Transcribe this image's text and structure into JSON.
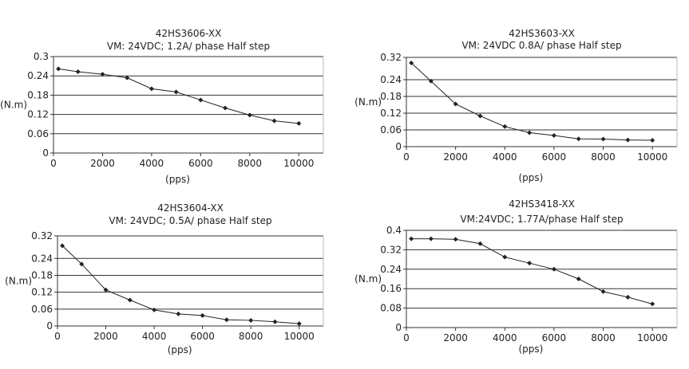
{
  "chart_data": [
    {
      "type": "line",
      "title": "42HS3606-XX",
      "subtitle": "VM: 24VDC;  1.2A/ phase Half step",
      "xlabel": "(pps)",
      "ylabel": "(N.m)",
      "xlim": [
        0,
        11000
      ],
      "ylim": [
        0,
        0.3
      ],
      "x_ticks": [
        "0",
        "2000",
        "4000",
        "6000",
        "8000",
        "10000"
      ],
      "y_ticks": [
        "0",
        "0.06",
        "0.12",
        "0.18",
        "0.24",
        "0.3"
      ],
      "grid": "horizontal",
      "series": [
        {
          "x": [
            200,
            1000,
            2000,
            3000,
            4000,
            5000,
            6000,
            7000,
            8000,
            9000,
            10000
          ],
          "values": [
            0.262,
            0.253,
            0.245,
            0.234,
            0.2,
            0.19,
            0.165,
            0.14,
            0.118,
            0.1,
            0.092
          ],
          "color": "#222222"
        }
      ]
    },
    {
      "type": "line",
      "title": "42HS3603-XX",
      "subtitle": "VM: 24VDC  0.8A/ phase Half step",
      "xlabel": "(pps)",
      "ylabel": "(N.m)",
      "xlim": [
        0,
        11000
      ],
      "ylim": [
        0,
        0.32
      ],
      "x_ticks": [
        "0",
        "2000",
        "4000",
        "6000",
        "8000",
        "10000"
      ],
      "y_ticks": [
        "0",
        "0.06",
        "0.12",
        "0.18",
        "0.24",
        "0.32"
      ],
      "grid": "horizontal",
      "series": [
        {
          "x": [
            200,
            1000,
            2000,
            3000,
            4000,
            5000,
            6000,
            7000,
            8000,
            9000,
            10000
          ],
          "values": [
            0.3,
            0.235,
            0.153,
            0.11,
            0.072,
            0.05,
            0.04,
            0.028,
            0.027,
            0.024,
            0.023
          ],
          "color": "#222222"
        }
      ]
    },
    {
      "type": "line",
      "title": "42HS3604-XX",
      "subtitle": "VM: 24VDC; 0.5A/ phase Half step",
      "xlabel": "(pps)",
      "ylabel": "(N.m)",
      "xlim": [
        0,
        11000
      ],
      "ylim": [
        0,
        0.32
      ],
      "x_ticks": [
        "0",
        "2000",
        "4000",
        "6000",
        "8000",
        "10000"
      ],
      "y_ticks": [
        "0",
        "0.06",
        "0.12",
        "0.18",
        "0.24",
        "0.32"
      ],
      "grid": "horizontal",
      "series": [
        {
          "x": [
            200,
            1000,
            2000,
            3000,
            4000,
            5000,
            6000,
            7000,
            8000,
            9000,
            10000
          ],
          "values": [
            0.285,
            0.22,
            0.128,
            0.092,
            0.057,
            0.043,
            0.037,
            0.022,
            0.02,
            0.015,
            0.008
          ],
          "color": "#222222"
        }
      ]
    },
    {
      "type": "line",
      "title": "42HS3418-XX",
      "subtitle": "VM:24VDC; 1.77A/phase  Half step",
      "xlabel": "(pps)",
      "ylabel": "(N.m)",
      "xlim": [
        0,
        11000
      ],
      "ylim": [
        0,
        0.4
      ],
      "x_ticks": [
        "0",
        "2000",
        "4000",
        "6000",
        "8000",
        "10000"
      ],
      "y_ticks": [
        "0",
        "0.08",
        "0.16",
        "0.24",
        "0.32",
        "0.4"
      ],
      "grid": "horizontal",
      "series": [
        {
          "x": [
            200,
            1000,
            2000,
            3000,
            4000,
            5000,
            6000,
            7000,
            8000,
            9000,
            10000
          ],
          "values": [
            0.365,
            0.365,
            0.363,
            0.345,
            0.29,
            0.265,
            0.24,
            0.2,
            0.148,
            0.125,
            0.097
          ],
          "color": "#222222"
        }
      ]
    }
  ]
}
